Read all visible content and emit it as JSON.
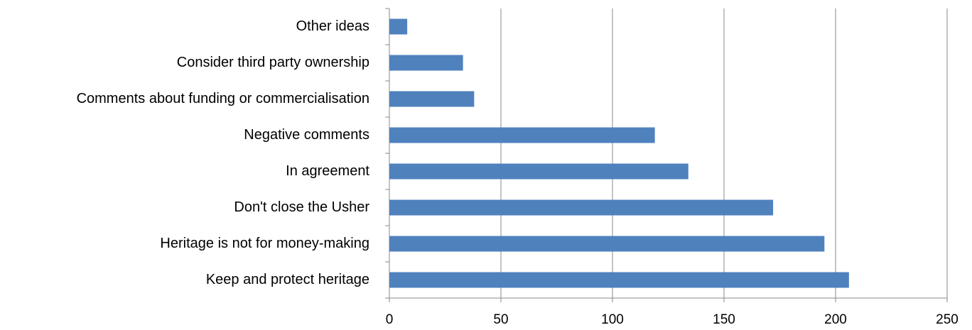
{
  "chart_data": {
    "type": "bar",
    "orientation": "horizontal",
    "categories": [
      "Other ideas",
      "Consider third party ownership",
      "Comments about funding or commercialisation",
      "Negative comments",
      "In agreement",
      "Don't close the Usher",
      "Heritage is not for money-making",
      "Keep and protect heritage"
    ],
    "values": [
      8,
      33,
      38,
      119,
      134,
      172,
      195,
      206
    ],
    "color": "#4f81bd",
    "xlim": [
      0,
      250
    ],
    "xticks": [
      0,
      50,
      100,
      150,
      200,
      250
    ],
    "grid": true
  }
}
